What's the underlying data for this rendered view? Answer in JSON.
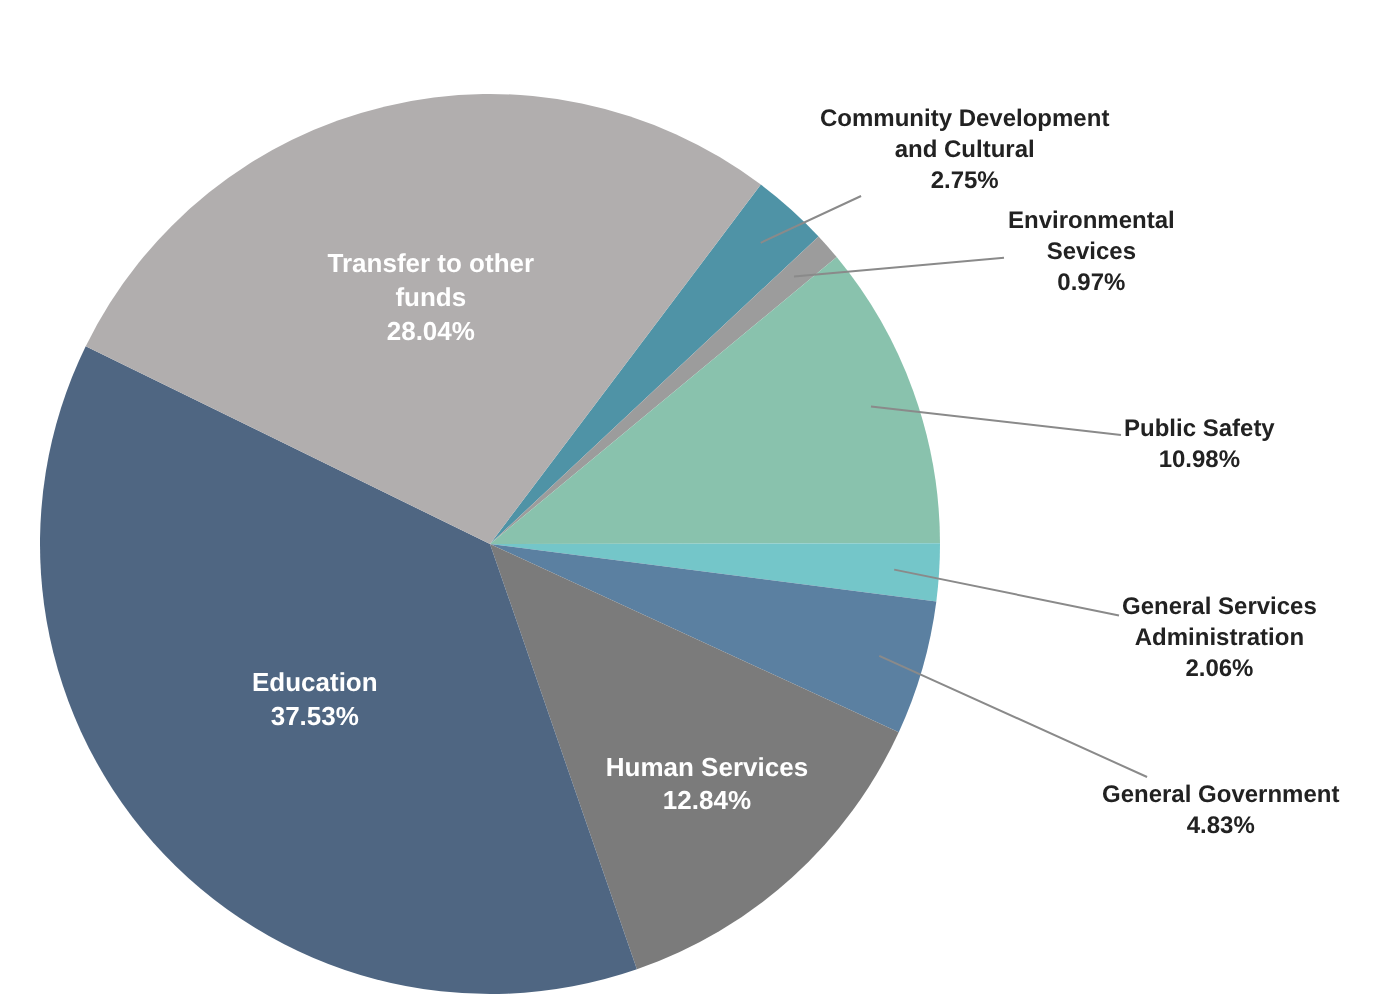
{
  "chart_data": {
    "type": "pie",
    "categories": [
      "Community Development\nand Cultural",
      "Environmental\nSevices",
      "Public Safety",
      "General Services\nAdministration",
      "General Government",
      "Human Services",
      "Education",
      "Transfer to other\nfunds"
    ],
    "values": [
      2.75,
      0.97,
      10.98,
      2.06,
      4.83,
      12.84,
      37.53,
      28.04
    ],
    "value_labels": [
      "2.75%",
      "0.97%",
      "10.98%",
      "2.06%",
      "4.83%",
      "12.84%",
      "37.53%",
      "28.04%"
    ],
    "colors": [
      "#4f93a6",
      "#9c9c9c",
      "#89c2ad",
      "#74c6c9",
      "#5b80a1",
      "#7b7b7b",
      "#4f6682",
      "#b1aeae"
    ]
  }
}
